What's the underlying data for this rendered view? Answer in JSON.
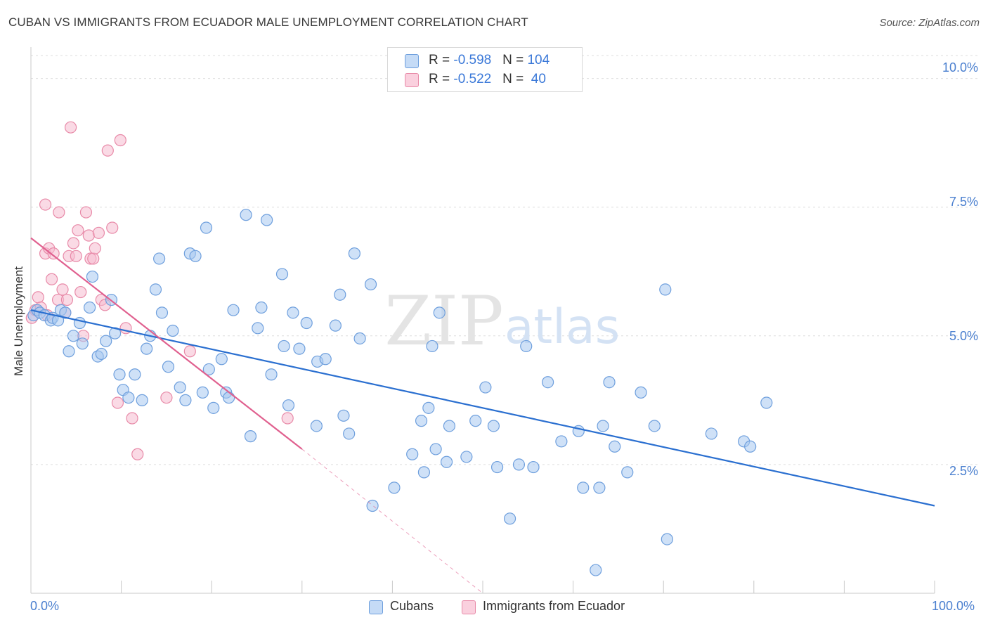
{
  "title": "CUBAN VS IMMIGRANTS FROM ECUADOR MALE UNEMPLOYMENT CORRELATION CHART",
  "source": "Source: ZipAtlas.com",
  "watermark": {
    "zip": "ZIP",
    "atlas": "atlas"
  },
  "colors": {
    "blue_fill": "#a8c8f0",
    "blue_stroke": "#6e9fdd",
    "blue_line": "#2a6fd0",
    "pink_fill": "#f6bcd0",
    "pink_stroke": "#e88aa8",
    "pink_line": "#e0608f",
    "grid": "#dddddd",
    "tick_text": "#4a7fcf"
  },
  "legend_top": [
    {
      "r_label": "R = ",
      "r_value": "-0.598",
      "n_label": "N = ",
      "n_value": "104",
      "color": "#a8c8f0"
    },
    {
      "r_label": "R = ",
      "r_value": "-0.522",
      "n_label": "N = ",
      "n_value": " 40",
      "color": "#f6bcd0"
    }
  ],
  "chart_data": {
    "type": "scatter",
    "xlabel": "",
    "ylabel": "Male Unemployment",
    "xlim": [
      0,
      100
    ],
    "ylim": [
      0,
      10.5
    ],
    "x_tick_labels": [
      "0.0%",
      "100.0%"
    ],
    "y_ticks": [
      2.5,
      5.0,
      7.5,
      10.0
    ],
    "y_tick_labels": [
      "2.5%",
      "5.0%",
      "7.5%",
      "10.0%"
    ],
    "grid": true,
    "legend_placement": "bottom-center",
    "series": [
      {
        "name": "Cubans",
        "color": "#a8c8f0",
        "trend": {
          "x": [
            0,
            100
          ],
          "y": [
            5.5,
            1.7
          ]
        },
        "points": [
          [
            0.3,
            5.4
          ],
          [
            0.7,
            5.5
          ],
          [
            1.0,
            5.45
          ],
          [
            1.5,
            5.4
          ],
          [
            2.2,
            5.3
          ],
          [
            2.4,
            5.35
          ],
          [
            3.3,
            5.5
          ],
          [
            3.8,
            5.45
          ],
          [
            4.2,
            4.7
          ],
          [
            4.7,
            5.0
          ],
          [
            5.4,
            5.25
          ],
          [
            5.7,
            4.85
          ],
          [
            6.5,
            5.55
          ],
          [
            6.8,
            6.15
          ],
          [
            7.4,
            4.6
          ],
          [
            7.8,
            4.65
          ],
          [
            8.3,
            4.9
          ],
          [
            8.9,
            5.7
          ],
          [
            9.3,
            5.05
          ],
          [
            9.8,
            4.25
          ],
          [
            10.2,
            3.95
          ],
          [
            10.8,
            3.8
          ],
          [
            11.5,
            4.25
          ],
          [
            12.3,
            3.75
          ],
          [
            12.8,
            4.75
          ],
          [
            13.2,
            5.0
          ],
          [
            13.8,
            5.9
          ],
          [
            14.2,
            6.5
          ],
          [
            14.5,
            5.45
          ],
          [
            15.2,
            4.4
          ],
          [
            15.7,
            5.1
          ],
          [
            16.5,
            4.0
          ],
          [
            17.1,
            3.75
          ],
          [
            17.6,
            6.6
          ],
          [
            18.2,
            6.55
          ],
          [
            19.0,
            3.9
          ],
          [
            19.4,
            7.1
          ],
          [
            19.7,
            4.35
          ],
          [
            20.2,
            3.6
          ],
          [
            21.1,
            4.55
          ],
          [
            21.6,
            3.9
          ],
          [
            21.9,
            3.8
          ],
          [
            22.4,
            5.5
          ],
          [
            23.8,
            7.35
          ],
          [
            24.3,
            3.05
          ],
          [
            25.1,
            5.15
          ],
          [
            25.5,
            5.55
          ],
          [
            26.1,
            7.25
          ],
          [
            26.6,
            4.25
          ],
          [
            27.8,
            6.2
          ],
          [
            28.0,
            4.8
          ],
          [
            28.5,
            3.65
          ],
          [
            29.0,
            5.45
          ],
          [
            29.7,
            4.75
          ],
          [
            30.5,
            5.25
          ],
          [
            31.6,
            3.25
          ],
          [
            31.7,
            4.5
          ],
          [
            32.6,
            4.55
          ],
          [
            33.7,
            5.2
          ],
          [
            34.2,
            5.8
          ],
          [
            34.6,
            3.45
          ],
          [
            35.2,
            3.1
          ],
          [
            35.8,
            6.6
          ],
          [
            36.4,
            4.95
          ],
          [
            37.6,
            6.0
          ],
          [
            37.8,
            1.7
          ],
          [
            40.2,
            2.05
          ],
          [
            42.2,
            2.7
          ],
          [
            43.2,
            3.35
          ],
          [
            43.5,
            2.35
          ],
          [
            44.0,
            3.6
          ],
          [
            44.4,
            4.8
          ],
          [
            44.8,
            2.8
          ],
          [
            45.2,
            5.45
          ],
          [
            46.0,
            2.55
          ],
          [
            46.3,
            3.25
          ],
          [
            48.2,
            2.65
          ],
          [
            49.2,
            3.35
          ],
          [
            50.3,
            4.0
          ],
          [
            51.2,
            3.25
          ],
          [
            51.6,
            2.45
          ],
          [
            53.0,
            1.45
          ],
          [
            54.0,
            2.5
          ],
          [
            54.8,
            4.8
          ],
          [
            55.6,
            2.45
          ],
          [
            57.2,
            4.1
          ],
          [
            58.7,
            2.95
          ],
          [
            60.6,
            3.15
          ],
          [
            61.1,
            2.05
          ],
          [
            62.9,
            2.05
          ],
          [
            63.3,
            3.25
          ],
          [
            64.0,
            4.1
          ],
          [
            64.6,
            2.85
          ],
          [
            66.0,
            2.35
          ],
          [
            67.5,
            3.9
          ],
          [
            69.0,
            3.25
          ],
          [
            70.2,
            5.9
          ],
          [
            70.4,
            1.05
          ],
          [
            75.3,
            3.1
          ],
          [
            78.9,
            2.95
          ],
          [
            79.6,
            2.85
          ],
          [
            81.4,
            3.7
          ],
          [
            62.5,
            0.45
          ],
          [
            3.0,
            5.3
          ]
        ]
      },
      {
        "name": "Immigrants from Ecuador",
        "color": "#f6bcd0",
        "trend": {
          "x": [
            0,
            30
          ],
          "y": [
            6.9,
            2.8
          ],
          "dashed_to": [
            50,
            0
          ]
        },
        "points": [
          [
            0.1,
            5.35
          ],
          [
            0.5,
            5.5
          ],
          [
            0.8,
            5.75
          ],
          [
            1.1,
            5.55
          ],
          [
            1.6,
            6.6
          ],
          [
            1.6,
            7.55
          ],
          [
            1.8,
            5.4
          ],
          [
            2.0,
            6.7
          ],
          [
            2.3,
            6.1
          ],
          [
            2.5,
            6.6
          ],
          [
            3.0,
            5.7
          ],
          [
            3.1,
            7.4
          ],
          [
            3.5,
            5.9
          ],
          [
            3.8,
            5.45
          ],
          [
            4.0,
            5.7
          ],
          [
            4.2,
            6.55
          ],
          [
            4.4,
            9.05
          ],
          [
            4.7,
            6.8
          ],
          [
            5.0,
            6.55
          ],
          [
            5.2,
            7.05
          ],
          [
            5.5,
            5.85
          ],
          [
            5.8,
            5.0
          ],
          [
            6.1,
            7.4
          ],
          [
            6.4,
            6.95
          ],
          [
            6.6,
            6.5
          ],
          [
            6.9,
            6.5
          ],
          [
            7.1,
            6.7
          ],
          [
            7.5,
            7.0
          ],
          [
            7.8,
            5.7
          ],
          [
            8.2,
            5.6
          ],
          [
            8.5,
            8.6
          ],
          [
            9.0,
            7.1
          ],
          [
            9.6,
            3.7
          ],
          [
            9.9,
            8.8
          ],
          [
            10.5,
            5.15
          ],
          [
            11.2,
            3.4
          ],
          [
            11.8,
            2.7
          ],
          [
            15.0,
            3.8
          ],
          [
            17.6,
            4.7
          ],
          [
            28.4,
            3.4
          ]
        ]
      }
    ]
  }
}
